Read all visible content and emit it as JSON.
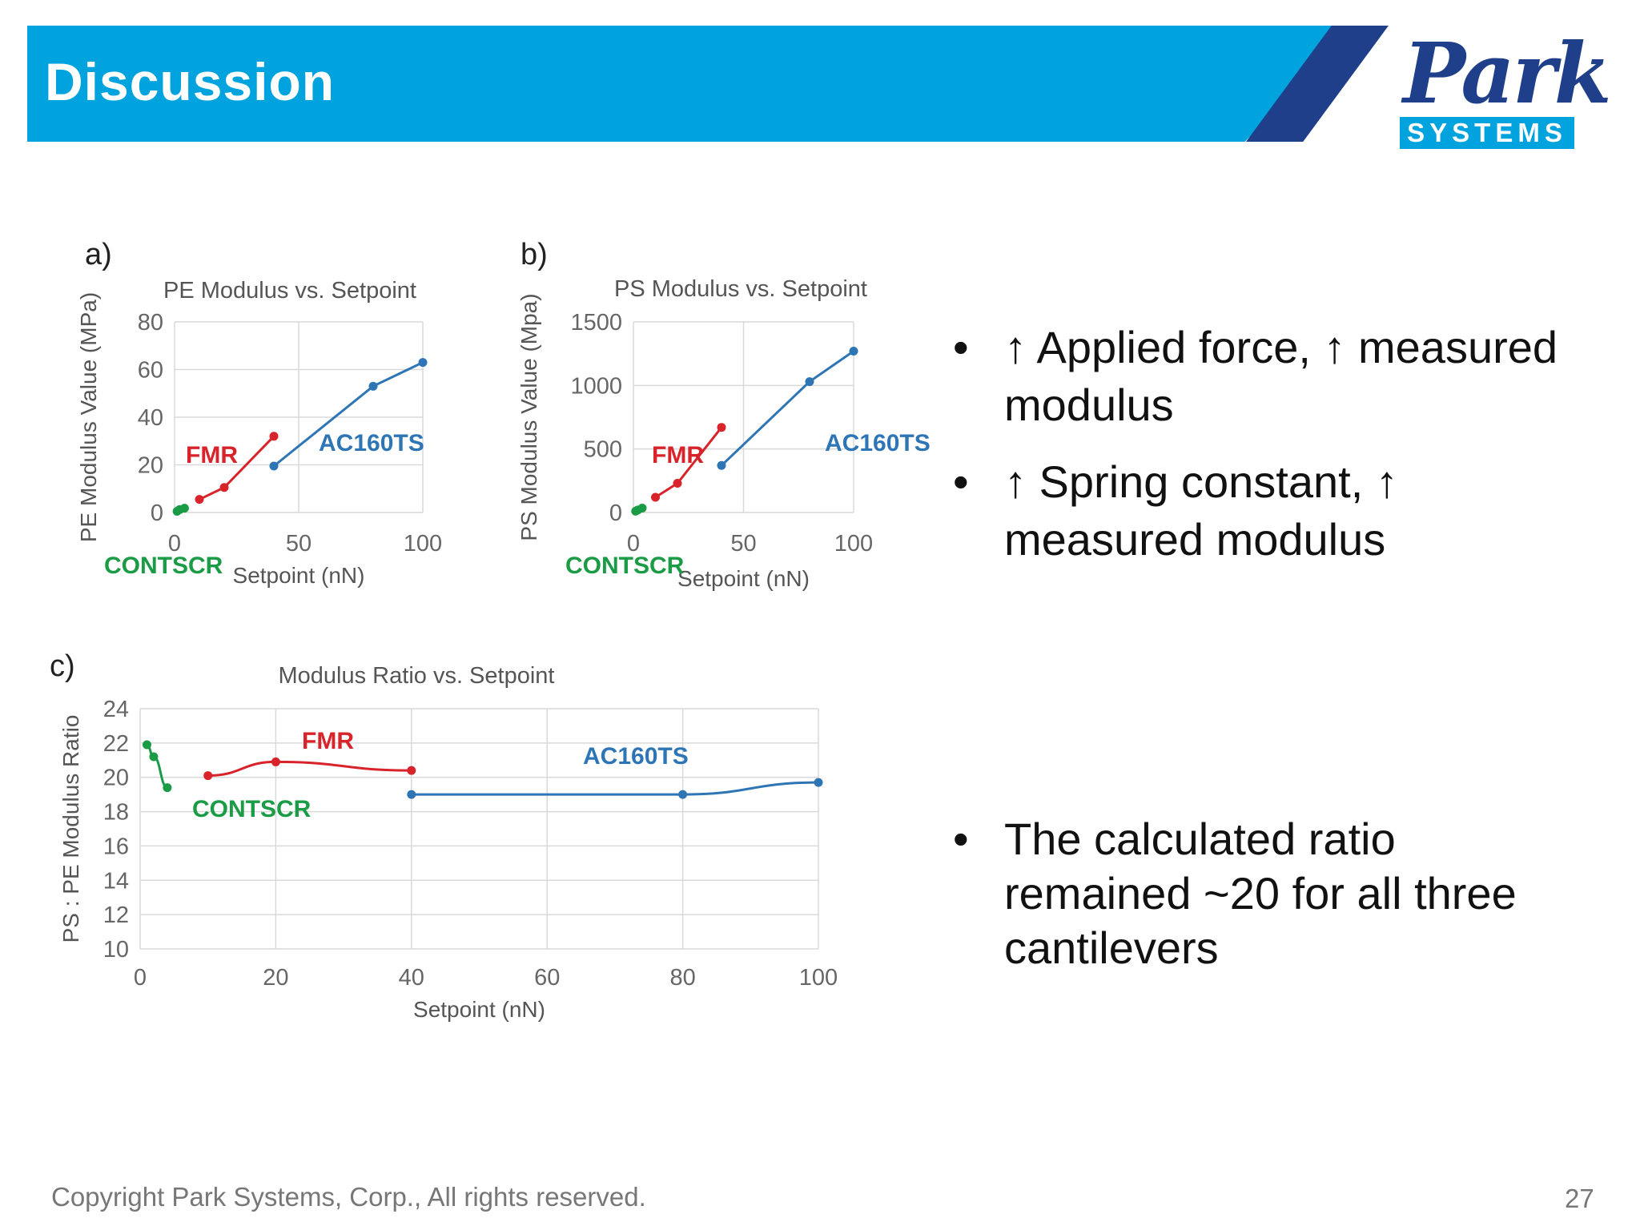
{
  "header": {
    "title": "Discussion"
  },
  "logo": {
    "word": "Park",
    "sub": "SYSTEMS"
  },
  "colors": {
    "brand_blue": "#00a3de",
    "brand_navy": "#1f3f8a",
    "contscr": "#1a9b45",
    "fmr": "#d8232a",
    "ac160ts": "#2e75b6"
  },
  "chart_data": [
    {
      "panel": "a)",
      "type": "line",
      "title": "PE Modulus vs. Setpoint",
      "xlabel": "Setpoint (nN)",
      "ylabel": "PE Modulus Value (MPa)",
      "xlim": [
        0,
        100
      ],
      "ylim": [
        0,
        80
      ],
      "xticks": [
        0,
        50,
        100
      ],
      "yticks": [
        0,
        20,
        40,
        60,
        80
      ],
      "series": [
        {
          "name": "CONTSCR",
          "x": [
            1,
            2,
            4
          ],
          "y": [
            0.5,
            1.2,
            1.8
          ]
        },
        {
          "name": "FMR",
          "x": [
            10,
            20,
            40
          ],
          "y": [
            5.5,
            10.5,
            32
          ]
        },
        {
          "name": "AC160TS",
          "x": [
            40,
            80,
            100
          ],
          "y": [
            19.5,
            53,
            63
          ]
        }
      ],
      "labels": [
        "CONTSCR",
        "FMR",
        "AC160TS"
      ]
    },
    {
      "panel": "b)",
      "type": "line",
      "title": "PS Modulus vs. Setpoint",
      "xlabel": "Setpoint (nN)",
      "ylabel": "PS Modulus Value (Mpa)",
      "xlim": [
        0,
        100
      ],
      "ylim": [
        0,
        1500
      ],
      "xticks": [
        0,
        50,
        100
      ],
      "yticks": [
        0,
        500,
        1000,
        1500
      ],
      "series": [
        {
          "name": "CONTSCR",
          "x": [
            1,
            2,
            4
          ],
          "y": [
            10,
            20,
            35
          ]
        },
        {
          "name": "FMR",
          "x": [
            10,
            20,
            40
          ],
          "y": [
            120,
            230,
            670
          ]
        },
        {
          "name": "AC160TS",
          "x": [
            40,
            80,
            100
          ],
          "y": [
            370,
            1030,
            1270
          ]
        }
      ],
      "labels": [
        "CONTSCR",
        "FMR",
        "AC160TS"
      ]
    },
    {
      "panel": "c)",
      "type": "line",
      "title": "Modulus Ratio vs. Setpoint",
      "xlabel": "Setpoint (nN)",
      "ylabel": "PS : PE Modulus Ratio",
      "xlim": [
        0,
        100
      ],
      "ylim": [
        10,
        24
      ],
      "xticks": [
        0,
        20,
        40,
        60,
        80,
        100
      ],
      "yticks": [
        10,
        12,
        14,
        16,
        18,
        20,
        22,
        24
      ],
      "series": [
        {
          "name": "CONTSCR",
          "x": [
            1,
            2,
            4
          ],
          "y": [
            21.9,
            21.2,
            19.4
          ]
        },
        {
          "name": "FMR",
          "x": [
            10,
            20,
            40
          ],
          "y": [
            20.1,
            20.9,
            20.4
          ]
        },
        {
          "name": "AC160TS",
          "x": [
            40,
            80,
            100
          ],
          "y": [
            19.0,
            19.0,
            19.7
          ]
        }
      ],
      "labels": [
        "CONTSCR",
        "FMR",
        "AC160TS"
      ]
    }
  ],
  "bullets": {
    "b1_line1": "↑ Applied force, ↑ measured",
    "b1_line2": "modulus",
    "b2_line1": "↑ Spring constant, ↑",
    "b2_line2": "measured modulus",
    "b3_line1": "The calculated ratio",
    "b3_line2": "remained ~20 for all three",
    "b3_line3": "cantilevers",
    "dot": "•"
  },
  "footer": {
    "copyright": "Copyright Park Systems, Corp., All rights reserved.",
    "page": "27"
  }
}
